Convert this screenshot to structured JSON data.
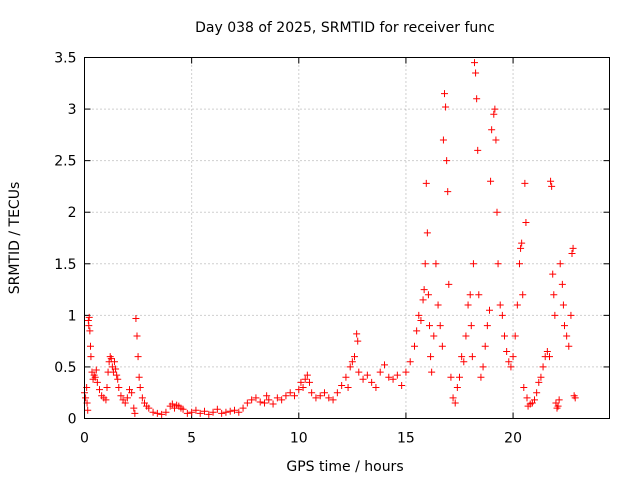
{
  "chart_data": {
    "type": "scatter",
    "title": "Day 038 of 2025, SRMTID for receiver func",
    "xlabel": "GPS time / hours",
    "ylabel": "SRMTID / TECUs",
    "xlim": [
      0,
      24.5
    ],
    "ylim": [
      0,
      3.5
    ],
    "x_ticks": [
      0,
      5,
      10,
      15,
      20
    ],
    "x_tick_labels": [
      "0",
      "5",
      "10",
      "15",
      "20"
    ],
    "y_ticks": [
      0,
      0.5,
      1,
      1.5,
      2,
      2.5,
      3,
      3.5
    ],
    "y_tick_labels": [
      "0",
      "0.5",
      "1",
      "1.5",
      "2",
      "2.5",
      "3",
      "3.5"
    ],
    "grid": true,
    "marker": "+",
    "series": [
      {
        "name": "SRMTID",
        "color": "#ff0000",
        "points": [
          [
            0.0,
            0.25
          ],
          [
            0.05,
            0.2
          ],
          [
            0.1,
            0.3
          ],
          [
            0.12,
            0.15
          ],
          [
            0.15,
            0.08
          ],
          [
            0.18,
            0.95
          ],
          [
            0.2,
            0.9
          ],
          [
            0.22,
            0.98
          ],
          [
            0.25,
            0.85
          ],
          [
            0.28,
            0.7
          ],
          [
            0.3,
            0.6
          ],
          [
            0.35,
            0.45
          ],
          [
            0.4,
            0.38
          ],
          [
            0.45,
            0.42
          ],
          [
            0.5,
            0.4
          ],
          [
            0.55,
            0.47
          ],
          [
            0.6,
            0.35
          ],
          [
            0.7,
            0.28
          ],
          [
            0.8,
            0.22
          ],
          [
            0.9,
            0.2
          ],
          [
            1.0,
            0.18
          ],
          [
            1.05,
            0.3
          ],
          [
            1.1,
            0.45
          ],
          [
            1.15,
            0.55
          ],
          [
            1.2,
            0.6
          ],
          [
            1.25,
            0.58
          ],
          [
            1.3,
            0.5
          ],
          [
            1.35,
            0.45
          ],
          [
            1.4,
            0.55
          ],
          [
            1.45,
            0.48
          ],
          [
            1.5,
            0.42
          ],
          [
            1.55,
            0.38
          ],
          [
            1.6,
            0.3
          ],
          [
            1.7,
            0.22
          ],
          [
            1.8,
            0.18
          ],
          [
            1.9,
            0.15
          ],
          [
            2.0,
            0.2
          ],
          [
            2.1,
            0.28
          ],
          [
            2.2,
            0.25
          ],
          [
            2.3,
            0.1
          ],
          [
            2.35,
            0.05
          ],
          [
            2.4,
            0.97
          ],
          [
            2.45,
            0.8
          ],
          [
            2.5,
            0.6
          ],
          [
            2.55,
            0.4
          ],
          [
            2.6,
            0.3
          ],
          [
            2.7,
            0.2
          ],
          [
            2.8,
            0.15
          ],
          [
            2.9,
            0.12
          ],
          [
            3.0,
            0.1
          ],
          [
            3.2,
            0.06
          ],
          [
            3.4,
            0.05
          ],
          [
            3.6,
            0.04
          ],
          [
            3.8,
            0.06
          ],
          [
            4.0,
            0.12
          ],
          [
            4.1,
            0.14
          ],
          [
            4.2,
            0.1
          ],
          [
            4.3,
            0.13
          ],
          [
            4.4,
            0.12
          ],
          [
            4.5,
            0.1
          ],
          [
            4.6,
            0.09
          ],
          [
            4.8,
            0.05
          ],
          [
            5.0,
            0.06
          ],
          [
            5.2,
            0.08
          ],
          [
            5.4,
            0.05
          ],
          [
            5.6,
            0.07
          ],
          [
            5.8,
            0.04
          ],
          [
            6.0,
            0.06
          ],
          [
            6.2,
            0.09
          ],
          [
            6.4,
            0.05
          ],
          [
            6.6,
            0.06
          ],
          [
            6.8,
            0.07
          ],
          [
            7.0,
            0.08
          ],
          [
            7.2,
            0.06
          ],
          [
            7.4,
            0.1
          ],
          [
            7.6,
            0.15
          ],
          [
            7.8,
            0.18
          ],
          [
            8.0,
            0.2
          ],
          [
            8.2,
            0.16
          ],
          [
            8.4,
            0.15
          ],
          [
            8.5,
            0.22
          ],
          [
            8.6,
            0.18
          ],
          [
            8.8,
            0.14
          ],
          [
            9.0,
            0.2
          ],
          [
            9.2,
            0.18
          ],
          [
            9.4,
            0.22
          ],
          [
            9.6,
            0.25
          ],
          [
            9.8,
            0.22
          ],
          [
            10.0,
            0.28
          ],
          [
            10.1,
            0.35
          ],
          [
            10.2,
            0.3
          ],
          [
            10.3,
            0.38
          ],
          [
            10.4,
            0.42
          ],
          [
            10.5,
            0.35
          ],
          [
            10.6,
            0.25
          ],
          [
            10.8,
            0.2
          ],
          [
            11.0,
            0.22
          ],
          [
            11.2,
            0.25
          ],
          [
            11.4,
            0.2
          ],
          [
            11.6,
            0.18
          ],
          [
            11.8,
            0.25
          ],
          [
            12.0,
            0.32
          ],
          [
            12.2,
            0.4
          ],
          [
            12.3,
            0.3
          ],
          [
            12.4,
            0.5
          ],
          [
            12.5,
            0.55
          ],
          [
            12.6,
            0.6
          ],
          [
            12.7,
            0.82
          ],
          [
            12.75,
            0.75
          ],
          [
            12.8,
            0.45
          ],
          [
            13.0,
            0.38
          ],
          [
            13.2,
            0.42
          ],
          [
            13.4,
            0.35
          ],
          [
            13.6,
            0.3
          ],
          [
            13.8,
            0.45
          ],
          [
            14.0,
            0.52
          ],
          [
            14.2,
            0.4
          ],
          [
            14.4,
            0.38
          ],
          [
            14.6,
            0.42
          ],
          [
            14.8,
            0.32
          ],
          [
            15.0,
            0.45
          ],
          [
            15.2,
            0.55
          ],
          [
            15.4,
            0.7
          ],
          [
            15.5,
            0.85
          ],
          [
            15.6,
            1.0
          ],
          [
            15.7,
            0.95
          ],
          [
            15.8,
            1.15
          ],
          [
            15.85,
            1.25
          ],
          [
            15.9,
            1.5
          ],
          [
            15.95,
            2.28
          ],
          [
            16.0,
            1.8
          ],
          [
            16.05,
            1.2
          ],
          [
            16.1,
            0.9
          ],
          [
            16.15,
            0.6
          ],
          [
            16.2,
            0.45
          ],
          [
            16.3,
            0.8
          ],
          [
            16.4,
            1.5
          ],
          [
            16.5,
            1.1
          ],
          [
            16.6,
            0.9
          ],
          [
            16.7,
            0.7
          ],
          [
            16.75,
            2.7
          ],
          [
            16.8,
            3.15
          ],
          [
            16.85,
            3.02
          ],
          [
            16.9,
            2.5
          ],
          [
            16.95,
            2.2
          ],
          [
            17.0,
            1.3
          ],
          [
            17.1,
            0.4
          ],
          [
            17.2,
            0.2
          ],
          [
            17.3,
            0.15
          ],
          [
            17.4,
            0.3
          ],
          [
            17.5,
            0.4
          ],
          [
            17.6,
            0.6
          ],
          [
            17.7,
            0.55
          ],
          [
            17.8,
            0.8
          ],
          [
            17.9,
            1.1
          ],
          [
            18.0,
            1.2
          ],
          [
            18.05,
            0.9
          ],
          [
            18.1,
            0.6
          ],
          [
            18.15,
            1.5
          ],
          [
            18.2,
            3.45
          ],
          [
            18.25,
            3.35
          ],
          [
            18.3,
            3.1
          ],
          [
            18.35,
            2.6
          ],
          [
            18.4,
            1.2
          ],
          [
            18.5,
            0.4
          ],
          [
            18.6,
            0.5
          ],
          [
            18.7,
            0.7
          ],
          [
            18.8,
            0.9
          ],
          [
            18.9,
            1.05
          ],
          [
            18.95,
            2.3
          ],
          [
            19.0,
            2.8
          ],
          [
            19.1,
            2.95
          ],
          [
            19.15,
            3.0
          ],
          [
            19.2,
            2.7
          ],
          [
            19.25,
            2.0
          ],
          [
            19.3,
            1.5
          ],
          [
            19.4,
            1.1
          ],
          [
            19.5,
            1.0
          ],
          [
            19.6,
            0.8
          ],
          [
            19.7,
            0.65
          ],
          [
            19.8,
            0.55
          ],
          [
            19.9,
            0.5
          ],
          [
            20.0,
            0.6
          ],
          [
            20.1,
            0.8
          ],
          [
            20.2,
            1.1
          ],
          [
            20.3,
            1.5
          ],
          [
            20.35,
            1.65
          ],
          [
            20.4,
            1.7
          ],
          [
            20.45,
            1.2
          ],
          [
            20.5,
            0.3
          ],
          [
            20.55,
            2.28
          ],
          [
            20.6,
            1.9
          ],
          [
            20.65,
            0.2
          ],
          [
            20.7,
            0.12
          ],
          [
            20.8,
            0.14
          ],
          [
            20.9,
            0.15
          ],
          [
            21.0,
            0.18
          ],
          [
            21.1,
            0.25
          ],
          [
            21.2,
            0.35
          ],
          [
            21.3,
            0.4
          ],
          [
            21.4,
            0.5
          ],
          [
            21.5,
            0.6
          ],
          [
            21.6,
            0.65
          ],
          [
            21.7,
            0.6
          ],
          [
            21.75,
            2.3
          ],
          [
            21.8,
            2.25
          ],
          [
            21.85,
            1.4
          ],
          [
            21.9,
            1.2
          ],
          [
            21.95,
            1.0
          ],
          [
            22.0,
            0.15
          ],
          [
            22.05,
            0.1
          ],
          [
            22.1,
            0.12
          ],
          [
            22.15,
            0.18
          ],
          [
            22.2,
            1.5
          ],
          [
            22.3,
            1.3
          ],
          [
            22.35,
            1.1
          ],
          [
            22.4,
            0.9
          ],
          [
            22.5,
            0.8
          ],
          [
            22.6,
            0.7
          ],
          [
            22.7,
            1.0
          ],
          [
            22.75,
            1.6
          ],
          [
            22.8,
            1.65
          ],
          [
            22.85,
            0.22
          ],
          [
            22.9,
            0.2
          ]
        ]
      }
    ]
  }
}
